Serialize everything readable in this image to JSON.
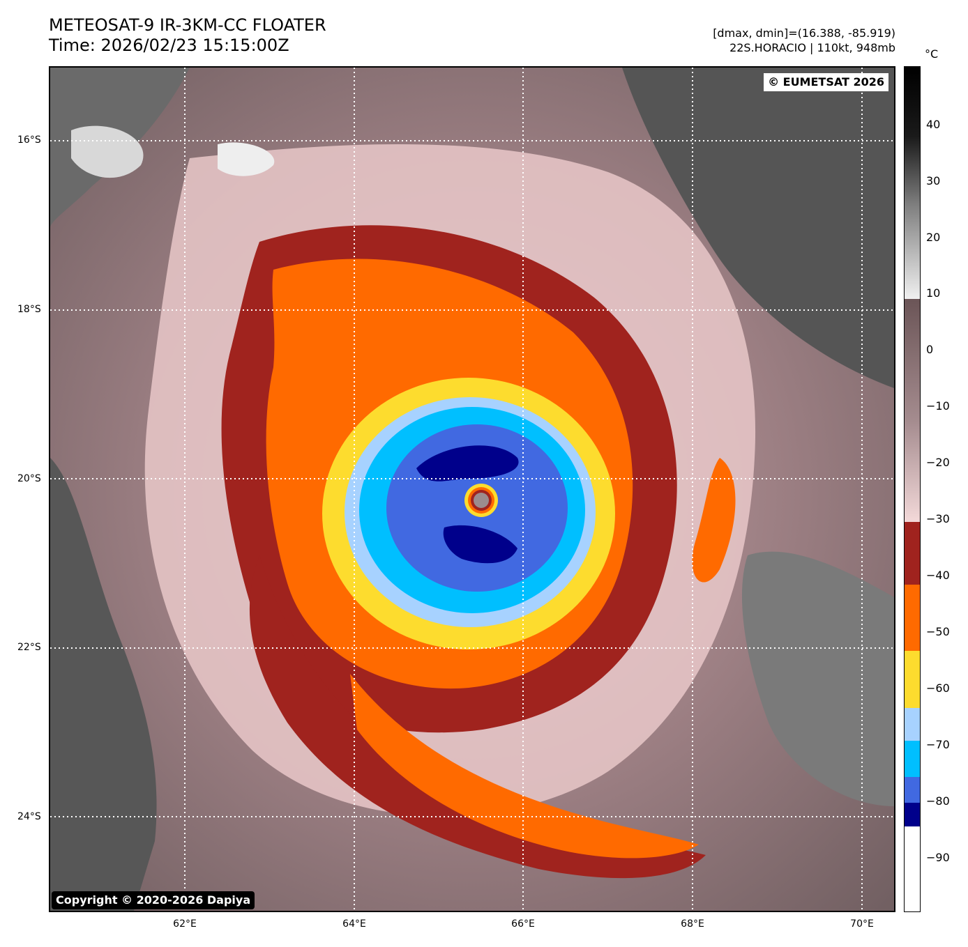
{
  "header": {
    "title_line1": "METEOSAT-9 IR-3KM-CC FLOATER",
    "title_line2": "Time: 2026/02/23 15:15:00Z",
    "info_line1": "[dmax, dmin]=(16.388, -85.919)",
    "info_line2": "22S.HORACIO | 110kt, 948mb"
  },
  "map": {
    "eumetsat_label": "© EUMETSAT 2026",
    "copyright_label": "Copyright © 2020-2026 Dapiya",
    "lat_labels": [
      "16°S",
      "18°S",
      "20°S",
      "22°S",
      "24°S"
    ],
    "lon_labels": [
      "62°E",
      "64°E",
      "66°E",
      "68°E",
      "70°E"
    ],
    "colors": {
      "cb_white": "#ffffff",
      "navy": "#00008b",
      "royal_blue": "#4169e1",
      "deep_sky": "#00bfff",
      "light_blue": "#a7d2ff",
      "yellow": "#fddc2e",
      "orange": "#ff6a00",
      "dark_red": "#a0231e",
      "pink_light": "#f2d4d4",
      "mauve": "#8a6c70",
      "dark_gray": "#505050"
    }
  },
  "colorbar": {
    "unit": "°C",
    "tick_labels": [
      "40",
      "30",
      "20",
      "10",
      "0",
      "−10",
      "−20",
      "−30",
      "−40",
      "−50",
      "−60",
      "−70",
      "−80",
      "−90"
    ],
    "tick_values": [
      40,
      30,
      20,
      10,
      0,
      -10,
      -20,
      -30,
      -40,
      -50,
      -60,
      -70,
      -80,
      -90
    ]
  }
}
